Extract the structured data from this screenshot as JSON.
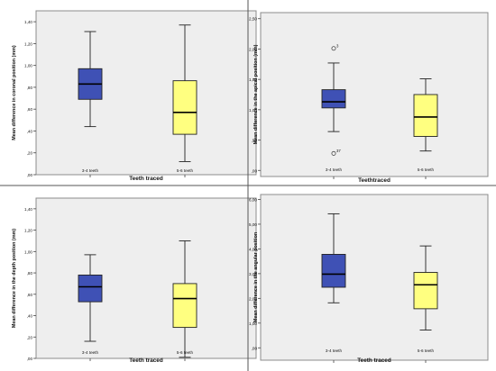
{
  "colors": {
    "plot_bg": "#eeeeee",
    "frame": "#8c8c8c",
    "divider": "#555555",
    "box_a": "#3f51b5",
    "box_b": "#ffff80",
    "whisker": "#222222",
    "text": "#111111"
  },
  "chart_data": [
    {
      "type": "box",
      "title": "",
      "xlabel": "Teeth traced",
      "ylabel": "Mean difference in coronal position (mm)",
      "ylim": [
        0,
        1.5
      ],
      "yticks": [
        {
          "value": 0.0,
          "label": ",00"
        },
        {
          "value": 0.2,
          "label": ",20"
        },
        {
          "value": 0.4,
          "label": ",40"
        },
        {
          "value": 0.6,
          "label": ",60"
        },
        {
          "value": 0.8,
          "label": ",80"
        },
        {
          "value": 1.0,
          "label": "1,00"
        },
        {
          "value": 1.2,
          "label": "1,20"
        },
        {
          "value": 1.4,
          "label": "1,40"
        }
      ],
      "categories": [
        "3-4 teeth",
        "5-6 teeth"
      ],
      "boxes": [
        {
          "category": "3-4 teeth",
          "min": 0.44,
          "q1": 0.69,
          "median": 0.83,
          "q3": 0.97,
          "max": 1.31,
          "outliers": []
        },
        {
          "category": "5-6 teeth",
          "min": 0.12,
          "q1": 0.37,
          "median": 0.57,
          "q3": 0.86,
          "max": 1.37,
          "outliers": []
        }
      ]
    },
    {
      "type": "box",
      "title": "",
      "xlabel": "Teethtraced",
      "ylabel": "Mean difference in the apical position (mm)",
      "ylim": [
        -0.1,
        2.6
      ],
      "yticks": [
        {
          "value": 0.0,
          "label": ",00"
        },
        {
          "value": 0.5,
          "label": ",50"
        },
        {
          "value": 1.0,
          "label": "1,00"
        },
        {
          "value": 1.5,
          "label": "1,50"
        },
        {
          "value": 2.0,
          "label": "2,00"
        },
        {
          "value": 2.5,
          "label": "2,50"
        }
      ],
      "categories": [
        "3-4 teeth",
        "5-6 teeth"
      ],
      "boxes": [
        {
          "category": "3-4 teeth",
          "min": 0.64,
          "q1": 1.03,
          "median": 1.13,
          "q3": 1.33,
          "max": 1.77,
          "outliers": [
            {
              "value": 2.01,
              "label": "3"
            },
            {
              "value": 0.28,
              "label": "37"
            }
          ]
        },
        {
          "category": "5-6 teeth",
          "min": 0.32,
          "q1": 0.56,
          "median": 0.88,
          "q3": 1.25,
          "max": 1.51,
          "outliers": []
        }
      ]
    },
    {
      "type": "box",
      "title": "",
      "xlabel": "Teeth traced",
      "ylabel": "Mean difference in the depth position (mm)",
      "ylim": [
        0,
        1.5
      ],
      "yticks": [
        {
          "value": 0.0,
          "label": ",00"
        },
        {
          "value": 0.2,
          "label": ",20"
        },
        {
          "value": 0.4,
          "label": ",40"
        },
        {
          "value": 0.6,
          "label": ",60"
        },
        {
          "value": 0.8,
          "label": ",80"
        },
        {
          "value": 1.0,
          "label": "1,00"
        },
        {
          "value": 1.2,
          "label": "1,20"
        },
        {
          "value": 1.4,
          "label": "1,40"
        }
      ],
      "categories": [
        "3-4 teeth",
        "5-6 teeth"
      ],
      "boxes": [
        {
          "category": "3-4 teeth",
          "min": 0.16,
          "q1": 0.53,
          "median": 0.67,
          "q3": 0.78,
          "max": 0.97,
          "outliers": []
        },
        {
          "category": "5-6 teeth",
          "min": 0.01,
          "q1": 0.29,
          "median": 0.56,
          "q3": 0.7,
          "max": 1.1,
          "outliers": []
        }
      ]
    },
    {
      "type": "box",
      "title": "",
      "xlabel": "Teeth traced",
      "ylabel": "Mean difference in the angular position",
      "ylim": [
        -0.5,
        6.2
      ],
      "yticks": [
        {
          "value": 0.0,
          "label": ",00"
        },
        {
          "value": 1.0,
          "label": "1,00"
        },
        {
          "value": 2.0,
          "label": "2,00"
        },
        {
          "value": 3.0,
          "label": "3,00"
        },
        {
          "value": 4.0,
          "label": "4,00"
        },
        {
          "value": 5.0,
          "label": "5,00"
        },
        {
          "value": 6.0,
          "label": "6,00"
        }
      ],
      "categories": [
        "3-4 teeth",
        "5-6 teeth"
      ],
      "boxes": [
        {
          "category": "3-4 teeth",
          "min": 1.82,
          "q1": 2.45,
          "median": 2.98,
          "q3": 3.78,
          "max": 5.42,
          "outliers": []
        },
        {
          "category": "5-6 teeth",
          "min": 0.72,
          "q1": 1.58,
          "median": 2.55,
          "q3": 3.05,
          "max": 4.12,
          "outliers": []
        }
      ]
    }
  ]
}
